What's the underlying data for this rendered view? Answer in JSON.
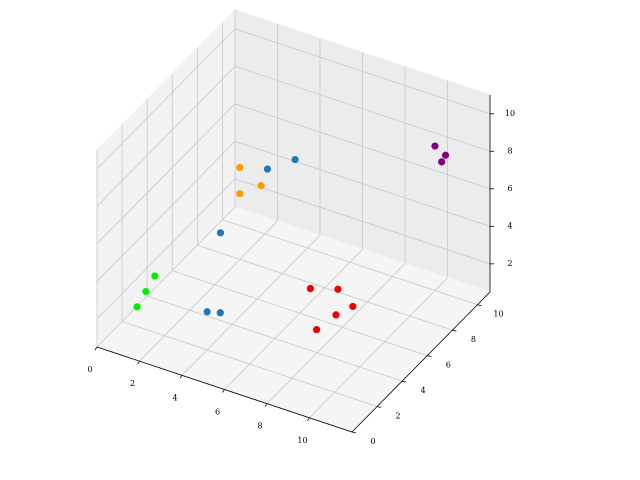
{
  "chart_data": {
    "type": "scatter3d",
    "xlim": [
      0,
      12
    ],
    "ylim": [
      0,
      11
    ],
    "zlim": [
      0.5,
      11
    ],
    "xticks": [
      0,
      2,
      4,
      6,
      8,
      10
    ],
    "yticks": [
      0,
      2,
      4,
      6,
      8,
      10
    ],
    "zticks": [
      2,
      4,
      6,
      8,
      10
    ],
    "grid": true,
    "series": [
      {
        "color": "#00ee00",
        "x": [
          1,
          1.3,
          1.6
        ],
        "y": [
          1.5,
          1.7,
          1.9
        ],
        "z": [
          2.0,
          2.8,
          3.6
        ]
      },
      {
        "color": "#ff9900",
        "x": [
          2,
          2,
          3
        ],
        "y": [
          8,
          8,
          8
        ],
        "z": [
          5.4,
          4.0,
          4.8
        ]
      },
      {
        "color": "#1f77b4",
        "x": [
          1.5,
          4.6,
          3.3,
          3,
          3.5
        ],
        "y": [
          7.3,
          8,
          8,
          3.7,
          3.9
        ],
        "z": [
          2.2,
          6.8,
          5.8,
          1.0,
          1.0
        ]
      },
      {
        "color": "#ee0000",
        "x": [
          7.5,
          8,
          8.5,
          7.5,
          6.5
        ],
        "y": [
          4.8,
          5.5,
          6,
          6.5,
          6
        ],
        "z": [
          1.0,
          1.5,
          1.8,
          2.0,
          2.0
        ]
      },
      {
        "color": "#800080",
        "x": [
          10,
          10.5,
          10.2
        ],
        "y": [
          10,
          10,
          10.2
        ],
        "z": [
          8.2,
          7.9,
          7.3
        ]
      }
    ]
  }
}
